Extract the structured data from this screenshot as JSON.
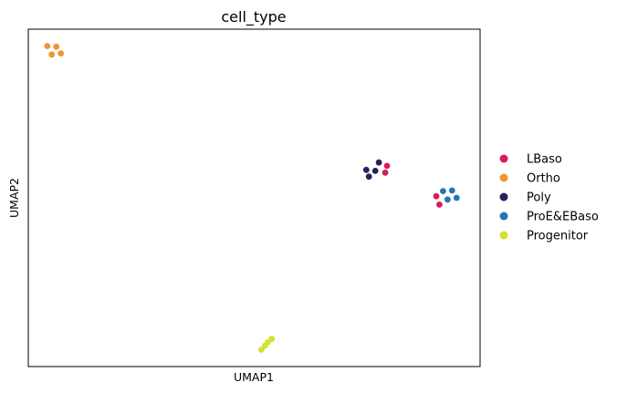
{
  "chart_data": {
    "type": "scatter",
    "title": "cell_type",
    "xlabel": "UMAP1",
    "ylabel": "UMAP2",
    "xticks": false,
    "yticks": false,
    "grid": false,
    "legend_position": "right",
    "xlim": [
      0,
      1
    ],
    "ylim": [
      0,
      1
    ],
    "series": [
      {
        "name": "LBaso",
        "color": "#d81b60",
        "points": [
          {
            "x": 0.794,
            "y": 0.595
          },
          {
            "x": 0.79,
            "y": 0.575
          },
          {
            "x": 0.903,
            "y": 0.505
          },
          {
            "x": 0.91,
            "y": 0.48
          }
        ]
      },
      {
        "name": "Ortho",
        "color": "#f0952f",
        "points": [
          {
            "x": 0.042,
            "y": 0.95
          },
          {
            "x": 0.062,
            "y": 0.948
          },
          {
            "x": 0.052,
            "y": 0.925
          },
          {
            "x": 0.072,
            "y": 0.928
          }
        ]
      },
      {
        "name": "Poly",
        "color": "#2b1f5a",
        "points": [
          {
            "x": 0.776,
            "y": 0.605
          },
          {
            "x": 0.748,
            "y": 0.583
          },
          {
            "x": 0.768,
            "y": 0.58
          },
          {
            "x": 0.754,
            "y": 0.563
          }
        ]
      },
      {
        "name": "ProE&EBaso",
        "color": "#1f77b4",
        "points": [
          {
            "x": 0.918,
            "y": 0.52
          },
          {
            "x": 0.938,
            "y": 0.522
          },
          {
            "x": 0.948,
            "y": 0.5
          },
          {
            "x": 0.928,
            "y": 0.495
          }
        ]
      },
      {
        "name": "Progenitor",
        "color": "#d4e034",
        "points": [
          {
            "x": 0.539,
            "y": 0.082
          },
          {
            "x": 0.53,
            "y": 0.072
          },
          {
            "x": 0.524,
            "y": 0.062
          },
          {
            "x": 0.516,
            "y": 0.05
          }
        ]
      }
    ]
  }
}
